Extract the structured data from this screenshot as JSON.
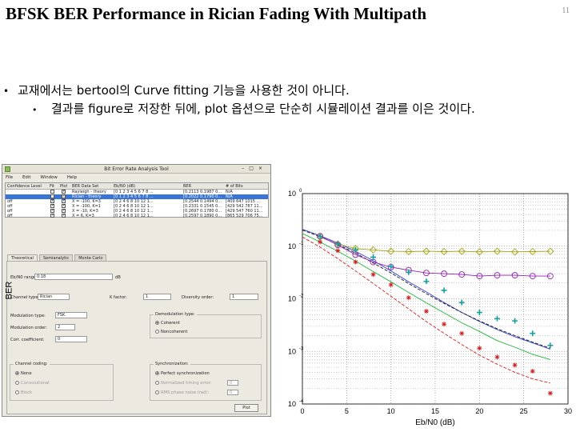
{
  "slide": {
    "title": "BFSK BER Performance in Rician Fading With Multipath",
    "page_number": "11",
    "bullets": [
      "교재에서는 bertool의 Curve fitting 기능을 사용한 것이 아니다.",
      "결과를 figure로 저장한 뒤에, plot 옵션으로 단순히 시뮬레이션 결과를 이은 것이다."
    ]
  },
  "bertool": {
    "window_title": "Bit Error Rate Analysis Tool",
    "menu": [
      "File",
      "Edit",
      "Window",
      "Help"
    ],
    "table": {
      "headers": [
        "Confidence Level",
        "Fit",
        "Plot",
        "BER Data Set",
        "Eb/N0 (dB)",
        "BER",
        "# of Bits"
      ],
      "rows": [
        {
          "conf": "",
          "fit": false,
          "plot": true,
          "name": "Rayleigh - theory",
          "ebno": "[0 1 2 3 4 5 6 7 8 ...",
          "ber": "[0.2113 0.1987 0...",
          "bits": "N/A",
          "selected": false
        },
        {
          "conf": "",
          "fit": false,
          "plot": true,
          "name": "Rician - theory",
          "ebno": "[0 1 2 3 4 5 6 7 8 ...",
          "ber": "[0.2022 0.1790 0...",
          "bits": "N/A",
          "selected": true
        },
        {
          "conf": "off",
          "fit": true,
          "plot": true,
          "name": "X = -100, K=3",
          "ebno": "[0 2 4 6 8 10 12 1...",
          "ber": "[0.2544 0.1494 0...",
          "bits": "[409 647 1015 ...",
          "selected": false
        },
        {
          "conf": "off",
          "fit": true,
          "plot": true,
          "name": "X = -100, K=1",
          "ebno": "[0 2 4 6 8 10 12 1...",
          "ber": "[0.2331 0.1545 0...",
          "bits": "[429 542 787 11...",
          "selected": false
        },
        {
          "conf": "off",
          "fit": true,
          "plot": true,
          "name": "X = -10, K=3",
          "ebno": "[0 2 4 6 8 10 12 1...",
          "ber": "[0.2697 0.1780 0...",
          "bits": "[429 547 760 11...",
          "selected": false
        },
        {
          "conf": "off",
          "fit": true,
          "plot": true,
          "name": "X = 6, K=3",
          "ebno": "[0 2 4 6 8 10 12 1...",
          "ber": "[0.2597 0.1890 0...",
          "bits": "[865 529 706 75...",
          "selected": false
        }
      ]
    },
    "tabs": [
      "Theoretical",
      "Semianalytic",
      "Monte Carlo"
    ],
    "active_tab": "Theoretical",
    "form": {
      "ebno_label": "Eb/N0 range:",
      "ebno_value": "0:18",
      "ebno_unit": "dB",
      "channel_label": "Channel type:",
      "channel_value": "Rician",
      "kfactor_label": "K factor:",
      "kfactor_value": "1",
      "diversity_label": "Diversity order:",
      "diversity_value": "1",
      "modtype_label": "Modulation type:",
      "modtype_value": "FSK",
      "modorder_label": "Modulation order:",
      "modorder_value": "2",
      "corr_label": "Corr. coefficient:",
      "corr_value": "0",
      "demod_group": "Demodulation type:",
      "demod_options": [
        "Coherent",
        "Noncoherent"
      ],
      "coding_group": "Channel coding:",
      "coding_options": [
        "None",
        "Convolutional",
        "Block"
      ],
      "sync_group": "Synchronization:",
      "sync_options": [
        "Perfect synchronization",
        "Normalized timing error:",
        "RMS phase noise (rad):"
      ],
      "sync_values": [
        "0",
        "0"
      ],
      "plot_button": "Plot"
    }
  },
  "chart_data": {
    "type": "line",
    "xlabel": "Eb/N0 (dB)",
    "ylabel": "BER",
    "xlim": [
      0,
      30
    ],
    "ylim": [
      0.0001,
      1
    ],
    "yscale": "log",
    "xticks": [
      0,
      5,
      10,
      15,
      20,
      25,
      30
    ],
    "yticks": [
      "10^0",
      "10^-1",
      "10^-2",
      "10^-3",
      "10^-4"
    ],
    "grid": true,
    "series": [
      {
        "style": "line",
        "color": "#2f3bd1",
        "x": [
          0,
          2,
          4,
          6,
          8,
          10,
          12,
          14,
          16,
          18,
          20,
          22,
          24,
          26,
          28
        ],
        "y": [
          0.209,
          0.158,
          0.115,
          0.08,
          0.053,
          0.034,
          0.021,
          0.0135,
          0.0085,
          0.0055,
          0.0037,
          0.0026,
          0.0019,
          0.00145,
          0.0011
        ]
      },
      {
        "style": "line",
        "color": "#1c1c1c",
        "dash": true,
        "x": [
          0,
          2,
          4,
          6,
          8,
          10,
          12,
          14,
          16,
          18,
          20,
          22,
          24,
          26,
          28
        ],
        "y": [
          0.202,
          0.152,
          0.108,
          0.074,
          0.048,
          0.031,
          0.0195,
          0.0125,
          0.0082,
          0.0055,
          0.0038,
          0.0027,
          0.002,
          0.0015,
          0.00115
        ]
      },
      {
        "style": "line",
        "color": "#22b43c",
        "x": [
          0,
          2,
          4,
          6,
          8,
          10,
          12,
          14,
          16,
          18,
          20,
          22,
          24,
          26,
          28
        ],
        "y": [
          0.175,
          0.12,
          0.08,
          0.052,
          0.033,
          0.021,
          0.0132,
          0.0084,
          0.0054,
          0.0035,
          0.0024,
          0.0016,
          0.0012,
          0.00088,
          0.0007
        ]
      },
      {
        "style": "line",
        "color": "#d42121",
        "dash": true,
        "x": [
          0,
          2,
          4,
          6,
          8,
          10,
          12,
          14,
          16,
          18,
          20,
          22,
          24,
          26,
          28
        ],
        "y": [
          0.15,
          0.096,
          0.058,
          0.034,
          0.0195,
          0.0112,
          0.0064,
          0.0037,
          0.0022,
          0.00135,
          0.00085,
          0.00057,
          0.0004,
          0.0003,
          0.00025
        ]
      },
      {
        "style": "marker",
        "marker": "diamond",
        "color": "#a5a51a",
        "x": [
          2,
          4,
          6,
          8,
          10,
          12,
          14,
          16,
          18,
          20,
          22,
          24,
          26,
          28
        ],
        "y": [
          0.149,
          0.11,
          0.09,
          0.085,
          0.08,
          0.079,
          0.08,
          0.079,
          0.08,
          0.078,
          0.08,
          0.078,
          0.079,
          0.08
        ]
      },
      {
        "style": "line",
        "color": "#a5a51a",
        "x": [
          2,
          4,
          6,
          8,
          10,
          12,
          14,
          16,
          18,
          20,
          22,
          24,
          26,
          28
        ],
        "y": [
          0.149,
          0.11,
          0.09,
          0.085,
          0.08,
          0.079,
          0.08,
          0.079,
          0.08,
          0.078,
          0.08,
          0.078,
          0.079,
          0.08
        ]
      },
      {
        "style": "marker",
        "marker": "circle",
        "color": "#8f22b0",
        "x": [
          2,
          4,
          6,
          8,
          10,
          12,
          14,
          16,
          18,
          20,
          22,
          24,
          26,
          28
        ],
        "y": [
          0.155,
          0.105,
          0.069,
          0.05,
          0.04,
          0.035,
          0.031,
          0.03,
          0.029,
          0.027,
          0.028,
          0.028,
          0.027,
          0.027
        ]
      },
      {
        "style": "line",
        "color": "#8f22b0",
        "x": [
          2,
          4,
          6,
          8,
          10,
          12,
          14,
          16,
          18,
          20,
          22,
          24,
          26,
          28
        ],
        "y": [
          0.155,
          0.105,
          0.069,
          0.05,
          0.04,
          0.035,
          0.031,
          0.03,
          0.029,
          0.027,
          0.028,
          0.028,
          0.027,
          0.027
        ]
      },
      {
        "style": "marker",
        "marker": "plus",
        "color": "#1b9e9e",
        "x": [
          2,
          4,
          6,
          8,
          10,
          12,
          14,
          16,
          18,
          20,
          22,
          24,
          26,
          28
        ],
        "y": [
          0.152,
          0.11,
          0.085,
          0.062,
          0.041,
          0.032,
          0.0215,
          0.0145,
          0.0085,
          0.0055,
          0.0042,
          0.0038,
          0.0022,
          0.0013
        ]
      },
      {
        "style": "marker",
        "marker": "star",
        "color": "#cc1f1f",
        "x": [
          2,
          4,
          6,
          8,
          10,
          12,
          14,
          16,
          18,
          20,
          22,
          24,
          26,
          28
        ],
        "y": [
          0.12,
          0.082,
          0.05,
          0.029,
          0.0185,
          0.0105,
          0.0058,
          0.0033,
          0.0022,
          0.00115,
          0.00078,
          0.00055,
          0.00042,
          0.00016
        ]
      }
    ]
  }
}
